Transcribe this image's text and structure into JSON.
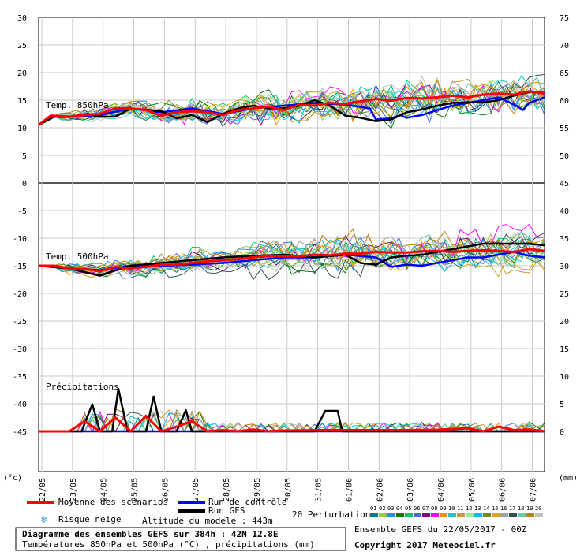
{
  "chart_data": {
    "type": "line",
    "title": "Diagramme des ensembles GEFS sur 384h : 42N 12.8E",
    "subtitle": "Températures 850hPa et 500hPa (°C) , précipitations (mm)",
    "left_unit": "(°c)",
    "right_unit": "(mm)",
    "left_ticks": [
      30,
      25,
      20,
      15,
      10,
      5,
      0,
      -5,
      -10,
      -15,
      -20,
      -25,
      -30,
      -35,
      -40,
      -45
    ],
    "right_ticks": [
      75,
      70,
      65,
      60,
      55,
      50,
      45,
      40,
      35,
      30,
      25,
      20,
      15,
      10,
      5,
      0
    ],
    "ylim": [
      -48,
      30
    ],
    "dates": [
      "22/05",
      "23/05",
      "24/05",
      "25/05",
      "26/05",
      "27/05",
      "28/05",
      "29/05",
      "30/05",
      "31/05",
      "01/06",
      "02/06",
      "03/06",
      "04/06",
      "05/06",
      "06/06",
      "07/06"
    ],
    "panel_labels": {
      "t850": "Temp. 850hPa",
      "t500": "Temp. 500hPa",
      "precip": "Précipitations"
    },
    "precip_base": -45,
    "precip_scale": 0.7,
    "mean": {
      "t850": [
        [
          0,
          10.5
        ],
        [
          0.4,
          12.2
        ],
        [
          1,
          12
        ],
        [
          1.5,
          12.3
        ],
        [
          2,
          12.5
        ],
        [
          2.5,
          13.5
        ],
        [
          3,
          13.5
        ],
        [
          3.5,
          13.2
        ],
        [
          4,
          12.2
        ],
        [
          4.5,
          12.8
        ],
        [
          5,
          13
        ],
        [
          5.5,
          12.8
        ],
        [
          6,
          12.3
        ],
        [
          6.5,
          13.2
        ],
        [
          7,
          13.5
        ],
        [
          7.5,
          13.8
        ],
        [
          8,
          13.2
        ],
        [
          8.5,
          14.2
        ],
        [
          9,
          14
        ],
        [
          9.5,
          14.5
        ],
        [
          10,
          14.3
        ],
        [
          10.5,
          14.8
        ],
        [
          11,
          15.2
        ],
        [
          11.5,
          14.9
        ],
        [
          12,
          15.4
        ],
        [
          12.5,
          15.3
        ],
        [
          13,
          15.5
        ],
        [
          13.5,
          15.8
        ],
        [
          14,
          15.5
        ],
        [
          14.5,
          16
        ],
        [
          15,
          16.2
        ],
        [
          15.5,
          16
        ],
        [
          16,
          16.6
        ],
        [
          16.5,
          16.2
        ]
      ],
      "t500": [
        [
          0,
          -15
        ],
        [
          0.5,
          -15
        ],
        [
          1,
          -15.5
        ],
        [
          1.5,
          -15.6
        ],
        [
          2,
          -16
        ],
        [
          2.5,
          -15.2
        ],
        [
          3,
          -15.5
        ],
        [
          3.5,
          -15.2
        ],
        [
          4,
          -14.8
        ],
        [
          4.5,
          -14.8
        ],
        [
          5,
          -14.5
        ],
        [
          5.5,
          -14.2
        ],
        [
          6,
          -14
        ],
        [
          6.5,
          -13.8
        ],
        [
          7,
          -13.5
        ],
        [
          7.5,
          -13.2
        ],
        [
          8,
          -13.3
        ],
        [
          8.5,
          -13.3
        ],
        [
          9,
          -13
        ],
        [
          9.5,
          -13.1
        ],
        [
          10,
          -12.8
        ],
        [
          10.5,
          -12.8
        ],
        [
          11,
          -12.5
        ],
        [
          11.5,
          -12.6
        ],
        [
          12,
          -12.6
        ],
        [
          12.5,
          -12.4
        ],
        [
          13,
          -12.3
        ],
        [
          13.5,
          -12.5
        ],
        [
          14,
          -12.3
        ],
        [
          14.5,
          -12.2
        ],
        [
          15,
          -12.3
        ],
        [
          15.5,
          -12.5
        ],
        [
          16,
          -12
        ],
        [
          16.5,
          -12.3
        ]
      ],
      "precip": [
        [
          0,
          0
        ],
        [
          1,
          0
        ],
        [
          1.5,
          2.6
        ],
        [
          2,
          0
        ],
        [
          2.5,
          3.6
        ],
        [
          3,
          0
        ],
        [
          3.5,
          4
        ],
        [
          4,
          0
        ],
        [
          4.5,
          1.2
        ],
        [
          5,
          2.6
        ],
        [
          5.5,
          0
        ],
        [
          6,
          0.3
        ],
        [
          6.5,
          0
        ],
        [
          7,
          0.5
        ],
        [
          7.5,
          0
        ],
        [
          8,
          0.2
        ],
        [
          9,
          0.3
        ],
        [
          10,
          0.3
        ],
        [
          11,
          0.3
        ],
        [
          12,
          0.3
        ],
        [
          13,
          0.4
        ],
        [
          14,
          0.8
        ],
        [
          14.5,
          0
        ],
        [
          15,
          1.2
        ],
        [
          15.5,
          0.3
        ],
        [
          16,
          0.5
        ],
        [
          16.5,
          0
        ]
      ]
    },
    "control": {
      "t850": [
        [
          0,
          10.5
        ],
        [
          0.5,
          12
        ],
        [
          1,
          12
        ],
        [
          2,
          12.3
        ],
        [
          3,
          13.5
        ],
        [
          4,
          12.8
        ],
        [
          5,
          13.5
        ],
        [
          6,
          12.5
        ],
        [
          7,
          13.5
        ],
        [
          8,
          14
        ],
        [
          9,
          14.5
        ],
        [
          10,
          14.2
        ],
        [
          10.8,
          13.5
        ],
        [
          11,
          11.5
        ],
        [
          11.5,
          11.7
        ],
        [
          11.8,
          12.3
        ],
        [
          12,
          11.8
        ],
        [
          12.5,
          12.3
        ],
        [
          13,
          13.2
        ],
        [
          13.5,
          14
        ],
        [
          14,
          14.5
        ],
        [
          14.5,
          15
        ],
        [
          15,
          15.5
        ],
        [
          15.5,
          14.2
        ],
        [
          15.8,
          13.2
        ],
        [
          16,
          14.5
        ],
        [
          16.5,
          15.5
        ]
      ],
      "t500": [
        [
          0,
          -15
        ],
        [
          1,
          -15.5
        ],
        [
          2,
          -15.8
        ],
        [
          3,
          -15
        ],
        [
          4,
          -15
        ],
        [
          5,
          -14.8
        ],
        [
          6,
          -14.5
        ],
        [
          7,
          -14
        ],
        [
          8,
          -13.5
        ],
        [
          9,
          -13.5
        ],
        [
          10,
          -13
        ],
        [
          11,
          -13.5
        ],
        [
          11.5,
          -15.2
        ],
        [
          12,
          -14.8
        ],
        [
          12.5,
          -15
        ],
        [
          13,
          -14.5
        ],
        [
          13.5,
          -14
        ],
        [
          14,
          -13.5
        ],
        [
          14.5,
          -13.5
        ],
        [
          15,
          -13
        ],
        [
          15.5,
          -12.5
        ],
        [
          16,
          -13.2
        ],
        [
          16.5,
          -13.5
        ]
      ],
      "precip": [
        [
          0,
          0
        ],
        [
          16.5,
          0
        ]
      ]
    },
    "gfs": {
      "t850": [
        [
          0,
          10.5
        ],
        [
          0.5,
          12
        ],
        [
          1,
          12
        ],
        [
          1.6,
          12.5
        ],
        [
          2,
          12
        ],
        [
          2.5,
          12
        ],
        [
          3,
          13.5
        ],
        [
          4,
          13
        ],
        [
          4.5,
          11.7
        ],
        [
          5,
          12.3
        ],
        [
          5.5,
          11
        ],
        [
          6,
          12.5
        ],
        [
          6.5,
          13.5
        ],
        [
          7,
          14
        ],
        [
          7.5,
          13.5
        ],
        [
          8,
          13.5
        ],
        [
          8.5,
          14
        ],
        [
          9,
          15
        ],
        [
          9.5,
          14
        ],
        [
          10,
          12.2
        ],
        [
          10.5,
          11.8
        ],
        [
          11,
          11.2
        ],
        [
          11.5,
          11.5
        ],
        [
          12,
          12.8
        ],
        [
          12.5,
          13.3
        ],
        [
          13,
          14
        ],
        [
          13.5,
          14.5
        ],
        [
          14,
          14.6
        ],
        [
          14.5,
          14.6
        ],
        [
          15,
          15
        ],
        [
          15.5,
          15.8
        ],
        [
          16,
          16.5
        ],
        [
          16.5,
          16.3
        ]
      ],
      "t500": [
        [
          0,
          -15
        ],
        [
          1,
          -15.5
        ],
        [
          2,
          -16.8
        ],
        [
          2.3,
          -16.2
        ],
        [
          3,
          -15
        ],
        [
          4,
          -14.5
        ],
        [
          5,
          -14
        ],
        [
          6,
          -13.5
        ],
        [
          7,
          -13.2
        ],
        [
          8,
          -13
        ],
        [
          9,
          -13.5
        ],
        [
          10,
          -13
        ],
        [
          10.5,
          -14.5
        ],
        [
          11,
          -14.8
        ],
        [
          11.5,
          -13.5
        ],
        [
          12,
          -13.2
        ],
        [
          12.5,
          -13
        ],
        [
          13,
          -12.5
        ],
        [
          13.5,
          -12
        ],
        [
          14,
          -11.5
        ],
        [
          14.5,
          -11
        ],
        [
          15,
          -11
        ],
        [
          15.5,
          -11
        ],
        [
          16,
          -11
        ],
        [
          16.5,
          -11.3
        ]
      ],
      "precip": [
        [
          0,
          0
        ],
        [
          1.4,
          0
        ],
        [
          1.75,
          7
        ],
        [
          2,
          0
        ],
        [
          2.4,
          0
        ],
        [
          2.6,
          11
        ],
        [
          2.9,
          0
        ],
        [
          3.5,
          0
        ],
        [
          3.75,
          9
        ],
        [
          4,
          0
        ],
        [
          4.5,
          0
        ],
        [
          4.8,
          5.5
        ],
        [
          5,
          0
        ],
        [
          9,
          0
        ],
        [
          9.35,
          5.3
        ],
        [
          9.75,
          5.3
        ],
        [
          9.9,
          0
        ],
        [
          16.5,
          0
        ]
      ]
    },
    "perturbation_colors": [
      "#008080",
      "#9acd32",
      "#1e90ff",
      "#008000",
      "#00cc66",
      "#4169e1",
      "#800080",
      "#ff00ff",
      "#ff8c00",
      "#1ec8c8",
      "#cc9933",
      "#90ee90",
      "#00bfff",
      "#6b8e23",
      "#daa520",
      "#a0a0a0",
      "#2f4f4f",
      "#66cdaa",
      "#b8860b",
      "#c0c0c0"
    ],
    "perturbation_label": "20 Perturbations",
    "perturbation_numbers": [
      "01",
      "02",
      "03",
      "04",
      "05",
      "06",
      "07",
      "08",
      "09",
      "10",
      "11",
      "12",
      "13",
      "14",
      "15",
      "16",
      "17",
      "18",
      "19",
      "20"
    ],
    "legend": {
      "mean": "Moyenne des scénarios",
      "control": "Run de contrôle",
      "gfs": "Run GFS",
      "snow": "Risque neige",
      "altitude": "Altitude du modele : 443m"
    },
    "series_colors": {
      "mean": "#ff0000",
      "control": "#0000ff",
      "gfs": "#000000"
    },
    "ensemble_run": "Ensemble GEFS du 22/05/2017 - 00Z",
    "copyright": "Copyright 2017 Meteociel.fr",
    "grid": true
  }
}
